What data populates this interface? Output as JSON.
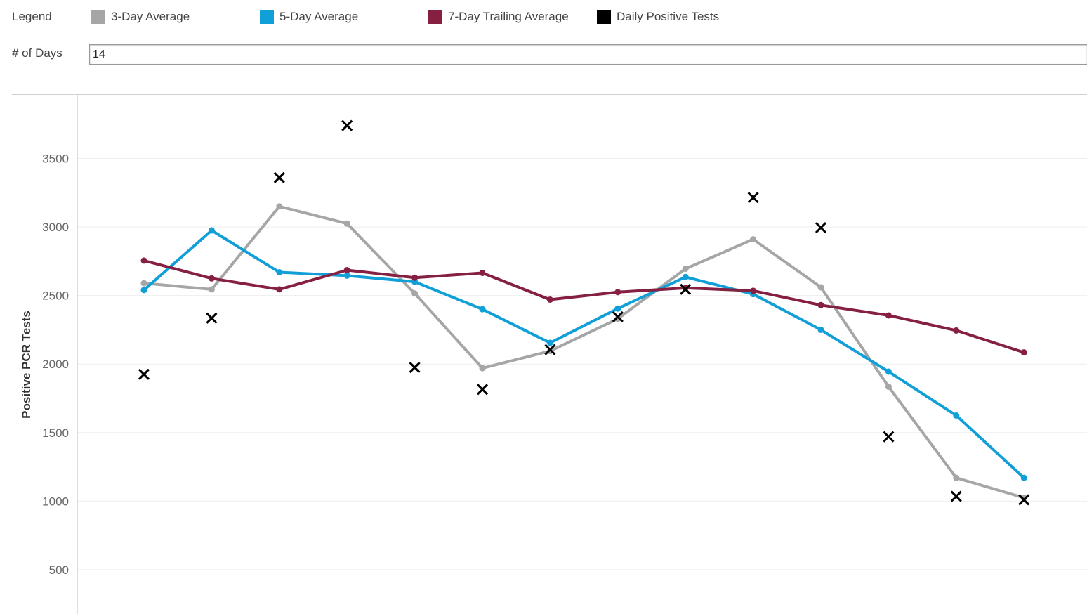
{
  "legend": {
    "title": "Legend",
    "items": [
      {
        "label": "3-Day Average",
        "color": "#a6a6a6"
      },
      {
        "label": "5-Day Average",
        "color": "#119fd8"
      },
      {
        "label": "7-Day Trailing Average",
        "color": "#862041"
      },
      {
        "label": "Daily Positive Tests",
        "color": "#000000"
      }
    ]
  },
  "days_control": {
    "label": "# of Days",
    "value": "14"
  },
  "chart_data": {
    "type": "line",
    "ylabel": "Positive PCR Tests",
    "xlabel": "",
    "yticks": [
      500,
      1000,
      1500,
      2000,
      2500,
      3000,
      3500
    ],
    "grid": true,
    "legend_placement": "top",
    "series": [
      {
        "name": "3-Day Average",
        "kind": "line",
        "color": "#a6a6a6",
        "values": [
          2590,
          2545,
          3150,
          3025,
          2515,
          1970,
          2095,
          2330,
          2695,
          2910,
          2560,
          1835,
          1170,
          1025
        ]
      },
      {
        "name": "5-Day Average",
        "kind": "line",
        "color": "#119fd8",
        "values": [
          2540,
          2975,
          2670,
          2645,
          2600,
          2400,
          2155,
          2405,
          2635,
          2510,
          2250,
          1945,
          1625,
          1170
        ]
      },
      {
        "name": "7-Day Trailing Average",
        "kind": "line",
        "color": "#862041",
        "values": [
          2755,
          2625,
          2545,
          2685,
          2630,
          2665,
          2470,
          2525,
          2555,
          2535,
          2430,
          2355,
          2245,
          2085
        ]
      },
      {
        "name": "Daily Positive Tests",
        "kind": "marker",
        "color": "#000000",
        "values": [
          1925,
          2335,
          3360,
          3740,
          1975,
          1815,
          2105,
          2345,
          2545,
          3215,
          2995,
          1470,
          1035,
          1010
        ]
      }
    ]
  }
}
